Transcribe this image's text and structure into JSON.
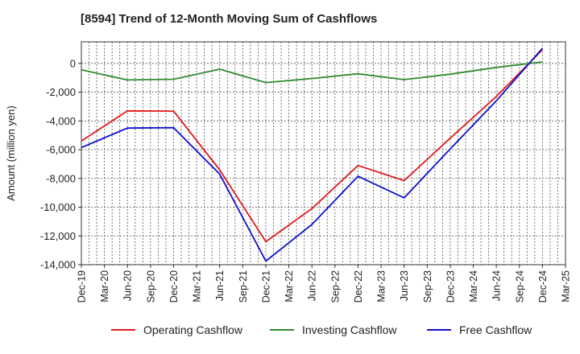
{
  "chart_data": {
    "type": "line",
    "title": "[8594]  Trend of 12-Month Moving Sum of Cashflows",
    "ylabel": "Amount (million yen)",
    "xlabel": "",
    "ylim": [
      -14000,
      1500
    ],
    "yticks": [
      0,
      -2000,
      -4000,
      -6000,
      -8000,
      -10000,
      -12000,
      -14000
    ],
    "ytick_labels": [
      "0",
      "-2,000",
      "-4,000",
      "-6,000",
      "-8,000",
      "-10,000",
      "-12,000",
      "-14,000"
    ],
    "categories": [
      "Dec-19",
      "Mar-20",
      "Jun-20",
      "Sep-20",
      "Dec-20",
      "Mar-21",
      "Jun-21",
      "Sep-21",
      "Dec-21",
      "Mar-22",
      "Jun-22",
      "Sep-22",
      "Dec-22",
      "Mar-23",
      "Jun-23",
      "Sep-23",
      "Dec-23",
      "Mar-24",
      "Jun-24",
      "Sep-24",
      "Dec-24",
      "Mar-25"
    ],
    "grid": true,
    "legend_position": "bottom",
    "series": [
      {
        "name": "Operating Cashflow",
        "color": "#e31a1c",
        "points": [
          [
            0,
            -5400
          ],
          [
            2,
            -3300
          ],
          [
            4,
            -3320
          ],
          [
            6,
            -7400
          ],
          [
            8,
            -12400
          ],
          [
            10,
            -10100
          ],
          [
            12,
            -7100
          ],
          [
            14,
            -8150
          ],
          [
            16,
            -5200
          ],
          [
            18,
            -2300
          ],
          [
            20,
            950
          ]
        ]
      },
      {
        "name": "Investing Cashflow",
        "color": "#2e8b2e",
        "points": [
          [
            0,
            -450
          ],
          [
            2,
            -1150
          ],
          [
            4,
            -1100
          ],
          [
            6,
            -400
          ],
          [
            8,
            -1330
          ],
          [
            10,
            -1050
          ],
          [
            12,
            -720
          ],
          [
            14,
            -1130
          ],
          [
            16,
            -750
          ],
          [
            18,
            -280
          ],
          [
            20,
            100
          ]
        ]
      },
      {
        "name": "Free Cashflow",
        "color": "#1010d0",
        "points": [
          [
            0,
            -5850
          ],
          [
            2,
            -4500
          ],
          [
            4,
            -4470
          ],
          [
            6,
            -7700
          ],
          [
            8,
            -13750
          ],
          [
            10,
            -11200
          ],
          [
            12,
            -7850
          ],
          [
            14,
            -9350
          ],
          [
            16,
            -5950
          ],
          [
            18,
            -2600
          ],
          [
            20,
            1050
          ]
        ]
      }
    ]
  }
}
